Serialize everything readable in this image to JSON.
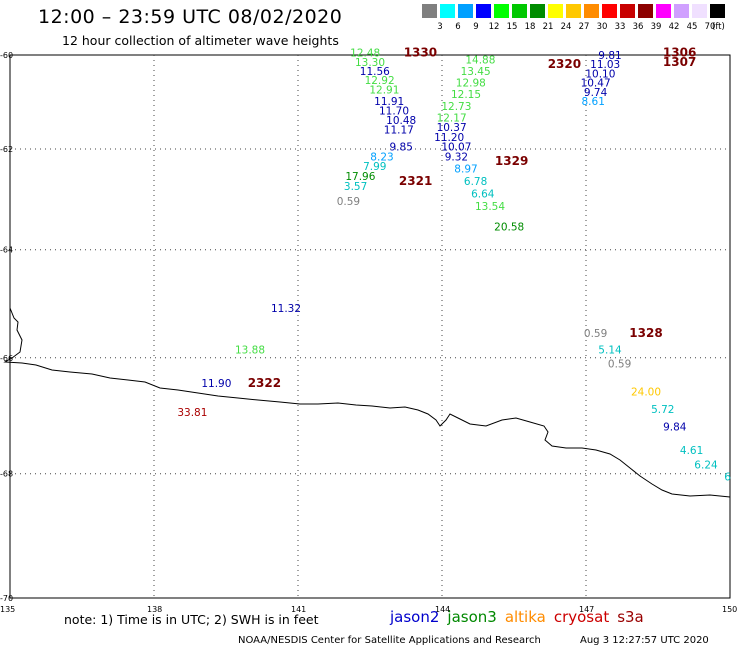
{
  "header": {
    "title": "12:00 – 23:59 UTC 08/02/2020",
    "subtitle": "12 hour collection of altimeter wave heights"
  },
  "legend": {
    "unit": "(ft)",
    "colors": [
      "#7f7f7f",
      "#00ffff",
      "#00a0ff",
      "#0000ff",
      "#00ff00",
      "#00c800",
      "#008c00",
      "#ffff00",
      "#ffc800",
      "#ff8c00",
      "#ff0000",
      "#c80000",
      "#8c0000",
      "#ff00ff",
      "#d0a0ff",
      "#f0e0ff",
      "#000000"
    ],
    "labels": [
      "3",
      "6",
      "9",
      "12",
      "15",
      "18",
      "21",
      "24",
      "27",
      "30",
      "33",
      "36",
      "39",
      "42",
      "45",
      "70"
    ]
  },
  "map": {
    "lat_labels": [
      "-60",
      "-62",
      "-64",
      "-66",
      "-68",
      "-70"
    ],
    "lon_labels": [
      "135",
      "138",
      "141",
      "144",
      "147",
      "150"
    ],
    "observations": [
      {
        "t": "12.48",
        "c": "#44dd44",
        "lon": 142.4,
        "lat": -59.95
      },
      {
        "t": "13.30",
        "c": "#44dd44",
        "lon": 142.5,
        "lat": -60.15
      },
      {
        "t": "11.56",
        "c": "#0000aa",
        "lon": 142.6,
        "lat": -60.35
      },
      {
        "t": "12.92",
        "c": "#44dd44",
        "lon": 142.7,
        "lat": -60.55
      },
      {
        "t": "12.91",
        "c": "#44dd44",
        "lon": 142.8,
        "lat": -60.75
      },
      {
        "t": "11.91",
        "c": "#0000aa",
        "lon": 142.9,
        "lat": -61.0
      },
      {
        "t": "11.70",
        "c": "#0000aa",
        "lon": 143.0,
        "lat": -61.2
      },
      {
        "t": "10.48",
        "c": "#0000aa",
        "lon": 143.15,
        "lat": -61.4
      },
      {
        "t": "11.17",
        "c": "#0000aa",
        "lon": 143.1,
        "lat": -61.6
      },
      {
        "t": "9.85",
        "c": "#0000aa",
        "lon": 143.15,
        "lat": -61.95
      },
      {
        "t": "8.23",
        "c": "#00a0ff",
        "lon": 142.75,
        "lat": -62.15
      },
      {
        "t": "7.99",
        "c": "#00c0c0",
        "lon": 142.6,
        "lat": -62.35
      },
      {
        "t": "17.96",
        "c": "#008c00",
        "lon": 142.3,
        "lat": -62.55
      },
      {
        "t": "3.57",
        "c": "#00c0c0",
        "lon": 142.2,
        "lat": -62.75
      },
      {
        "t": "0.59",
        "c": "#7f7f7f",
        "lon": 142.05,
        "lat": -63.05
      },
      {
        "t": "14.88",
        "c": "#44dd44",
        "lon": 144.8,
        "lat": -60.1
      },
      {
        "t": "13.45",
        "c": "#44dd44",
        "lon": 144.7,
        "lat": -60.35
      },
      {
        "t": "12.98",
        "c": "#44dd44",
        "lon": 144.6,
        "lat": -60.6
      },
      {
        "t": "12.15",
        "c": "#44dd44",
        "lon": 144.5,
        "lat": -60.85
      },
      {
        "t": "12.73",
        "c": "#44dd44",
        "lon": 144.3,
        "lat": -61.1
      },
      {
        "t": "12.17",
        "c": "#44dd44",
        "lon": 144.2,
        "lat": -61.35
      },
      {
        "t": "10.37",
        "c": "#0000aa",
        "lon": 144.2,
        "lat": -61.55
      },
      {
        "t": "11.20",
        "c": "#0000aa",
        "lon": 144.15,
        "lat": -61.75
      },
      {
        "t": "10.07",
        "c": "#0000aa",
        "lon": 144.3,
        "lat": -61.95
      },
      {
        "t": "9.32",
        "c": "#0000aa",
        "lon": 144.3,
        "lat": -62.15
      },
      {
        "t": "8.97",
        "c": "#00a0ff",
        "lon": 144.5,
        "lat": -62.4
      },
      {
        "t": "6.78",
        "c": "#00c0c0",
        "lon": 144.7,
        "lat": -62.65
      },
      {
        "t": "6.64",
        "c": "#00c0c0",
        "lon": 144.85,
        "lat": -62.9
      },
      {
        "t": "13.54",
        "c": "#44dd44",
        "lon": 145.0,
        "lat": -63.15
      },
      {
        "t": "20.58",
        "c": "#008c00",
        "lon": 145.4,
        "lat": -63.55
      },
      {
        "t": "9.81",
        "c": "#0000aa",
        "lon": 147.5,
        "lat": -60.0
      },
      {
        "t": "11.03",
        "c": "#0000aa",
        "lon": 147.4,
        "lat": -60.2
      },
      {
        "t": "10.10",
        "c": "#0000aa",
        "lon": 147.3,
        "lat": -60.4
      },
      {
        "t": "10.47",
        "c": "#0000aa",
        "lon": 147.2,
        "lat": -60.6
      },
      {
        "t": "9.74",
        "c": "#0000aa",
        "lon": 147.2,
        "lat": -60.8
      },
      {
        "t": "8.61",
        "c": "#00a0ff",
        "lon": 147.15,
        "lat": -61.0
      },
      {
        "t": "11.32",
        "c": "#0000aa",
        "lon": 140.75,
        "lat": -65.1
      },
      {
        "t": "13.88",
        "c": "#44dd44",
        "lon": 140.0,
        "lat": -65.85
      },
      {
        "t": "11.90",
        "c": "#0000aa",
        "lon": 139.3,
        "lat": -66.45
      },
      {
        "t": "33.81",
        "c": "#aa0000",
        "lon": 138.8,
        "lat": -66.95
      },
      {
        "t": "0.59",
        "c": "#7f7f7f",
        "lon": 147.2,
        "lat": -65.55
      },
      {
        "t": "5.14",
        "c": "#00c0c0",
        "lon": 147.5,
        "lat": -65.85
      },
      {
        "t": "0.59",
        "c": "#7f7f7f",
        "lon": 147.7,
        "lat": -66.1
      },
      {
        "t": "24.00",
        "c": "#ffc800",
        "lon": 148.25,
        "lat": -66.6
      },
      {
        "t": "5.72",
        "c": "#00c0c0",
        "lon": 148.6,
        "lat": -66.9
      },
      {
        "t": "9.84",
        "c": "#0000aa",
        "lon": 148.85,
        "lat": -67.2
      },
      {
        "t": "4.61",
        "c": "#00c0c0",
        "lon": 149.2,
        "lat": -67.6
      },
      {
        "t": "6.24",
        "c": "#00c0c0",
        "lon": 149.5,
        "lat": -67.85
      },
      {
        "t": "6",
        "c": "#00c0c0",
        "lon": 149.95,
        "lat": -68.05
      }
    ],
    "passes": [
      {
        "t": "1330",
        "lon": 143.55,
        "lat": -59.95
      },
      {
        "t": "2320",
        "lon": 146.55,
        "lat": -60.2
      },
      {
        "t": "1306",
        "lon": 148.95,
        "lat": -59.95
      },
      {
        "t": "1307",
        "lon": 148.95,
        "lat": -60.15
      },
      {
        "t": "1329",
        "lon": 145.45,
        "lat": -62.25
      },
      {
        "t": "2321",
        "lon": 143.45,
        "lat": -62.65
      },
      {
        "t": "1328",
        "lon": 148.25,
        "lat": -65.55
      },
      {
        "t": "2322",
        "lon": 140.3,
        "lat": -66.45
      }
    ]
  },
  "footer": {
    "note": "note: 1) Time is in UTC; 2) SWH is in feet",
    "satellites": [
      {
        "name": "jason2",
        "color": "#0000cc"
      },
      {
        "name": "jason3",
        "color": "#008800"
      },
      {
        "name": "altika",
        "color": "#ff8c00"
      },
      {
        "name": "cryosat",
        "color": "#cc0000"
      },
      {
        "name": "s3a",
        "color": "#990000"
      }
    ],
    "credit": "NOAA/NESDIS Center for Satellite Applications and Research",
    "timestamp": "Aug  3 12:27:57 UTC 2020"
  }
}
